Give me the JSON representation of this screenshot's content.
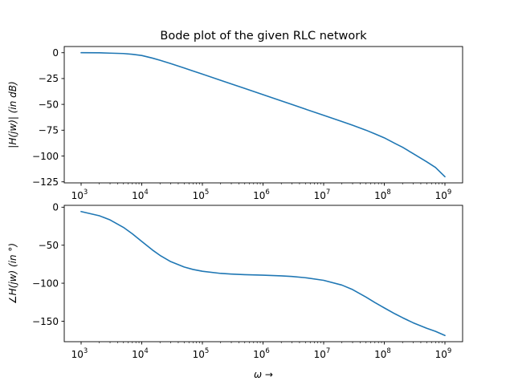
{
  "chart_data": [
    {
      "type": "line",
      "title": "Bode plot of the given RLC network",
      "ylabel": "|H(jw)| (in dB)",
      "xlabel": "",
      "xscale": "log",
      "xlim": [
        1000,
        1000000000
      ],
      "ylim": [
        -125,
        0
      ],
      "xticks": [
        {
          "value": 1000,
          "base": "10",
          "exp": "3"
        },
        {
          "value": 10000,
          "base": "10",
          "exp": "4"
        },
        {
          "value": 100000,
          "base": "10",
          "exp": "5"
        },
        {
          "value": 1000000,
          "base": "10",
          "exp": "6"
        },
        {
          "value": 10000000,
          "base": "10",
          "exp": "7"
        },
        {
          "value": 100000000,
          "base": "10",
          "exp": "8"
        },
        {
          "value": 1000000000,
          "base": "10",
          "exp": "9"
        }
      ],
      "yticks": [
        {
          "value": 0,
          "label": "0"
        },
        {
          "value": -25,
          "label": "−25"
        },
        {
          "value": -50,
          "label": "−50"
        },
        {
          "value": -75,
          "label": "−75"
        },
        {
          "value": -100,
          "label": "−100"
        },
        {
          "value": -125,
          "label": "−125"
        }
      ],
      "grid": false,
      "series": [
        {
          "color": "#1f77b4",
          "x": [
            1000,
            2000,
            3000,
            5000,
            7000,
            10000,
            15000,
            20000,
            30000,
            50000,
            70000,
            100000,
            200000,
            300000,
            500000,
            1000000,
            2000000,
            3000000,
            5000000,
            10000000,
            20000000,
            30000000,
            50000000,
            70000000,
            100000000,
            150000000,
            200000000,
            300000000,
            500000000,
            700000000,
            1000000000
          ],
          "values": [
            0,
            -0.1,
            -0.4,
            -0.8,
            -1.5,
            -2.7,
            -5.2,
            -7.3,
            -10.5,
            -14.8,
            -17.7,
            -20.7,
            -26.7,
            -30.2,
            -34.6,
            -40.6,
            -46.6,
            -50.1,
            -54.6,
            -60.6,
            -66.6,
            -70.2,
            -75,
            -78.5,
            -82.4,
            -87.8,
            -91.5,
            -97.7,
            -105.6,
            -111.1,
            -120
          ]
        }
      ]
    },
    {
      "type": "line",
      "title": "",
      "ylabel": "∠H(jw) (in °)",
      "xlabel": "ω →",
      "xscale": "log",
      "xlim": [
        1000,
        1000000000
      ],
      "ylim": [
        -180,
        0
      ],
      "xticks": [
        {
          "value": 1000,
          "base": "10",
          "exp": "3"
        },
        {
          "value": 10000,
          "base": "10",
          "exp": "4"
        },
        {
          "value": 100000,
          "base": "10",
          "exp": "5"
        },
        {
          "value": 1000000,
          "base": "10",
          "exp": "6"
        },
        {
          "value": 10000000,
          "base": "10",
          "exp": "7"
        },
        {
          "value": 100000000,
          "base": "10",
          "exp": "8"
        },
        {
          "value": 1000000000,
          "base": "10",
          "exp": "9"
        }
      ],
      "yticks": [
        {
          "value": 0,
          "label": "0"
        },
        {
          "value": -50,
          "label": "−50"
        },
        {
          "value": -100,
          "label": "−100"
        },
        {
          "value": -150,
          "label": "−150"
        }
      ],
      "grid": false,
      "series": [
        {
          "color": "#1f77b4",
          "x": [
            1000,
            2000,
            3000,
            5000,
            7000,
            10000,
            15000,
            20000,
            30000,
            50000,
            70000,
            100000,
            200000,
            300000,
            500000,
            1000000,
            2000000,
            3000000,
            5000000,
            10000000,
            20000000,
            30000000,
            50000000,
            70000000,
            100000000,
            150000000,
            200000000,
            300000000,
            500000000,
            700000000,
            1000000000
          ],
          "values": [
            -5.7,
            -11.3,
            -16.7,
            -26.6,
            -35,
            -45,
            -56.3,
            -63.4,
            -71.6,
            -78.7,
            -81.9,
            -84.3,
            -87.1,
            -88,
            -88.8,
            -89.4,
            -90.4,
            -91.1,
            -92.8,
            -96.2,
            -102.5,
            -108.4,
            -118.3,
            -125.4,
            -132.5,
            -140.3,
            -145.4,
            -152.1,
            -159.3,
            -163.4,
            -168.8
          ]
        }
      ]
    }
  ]
}
